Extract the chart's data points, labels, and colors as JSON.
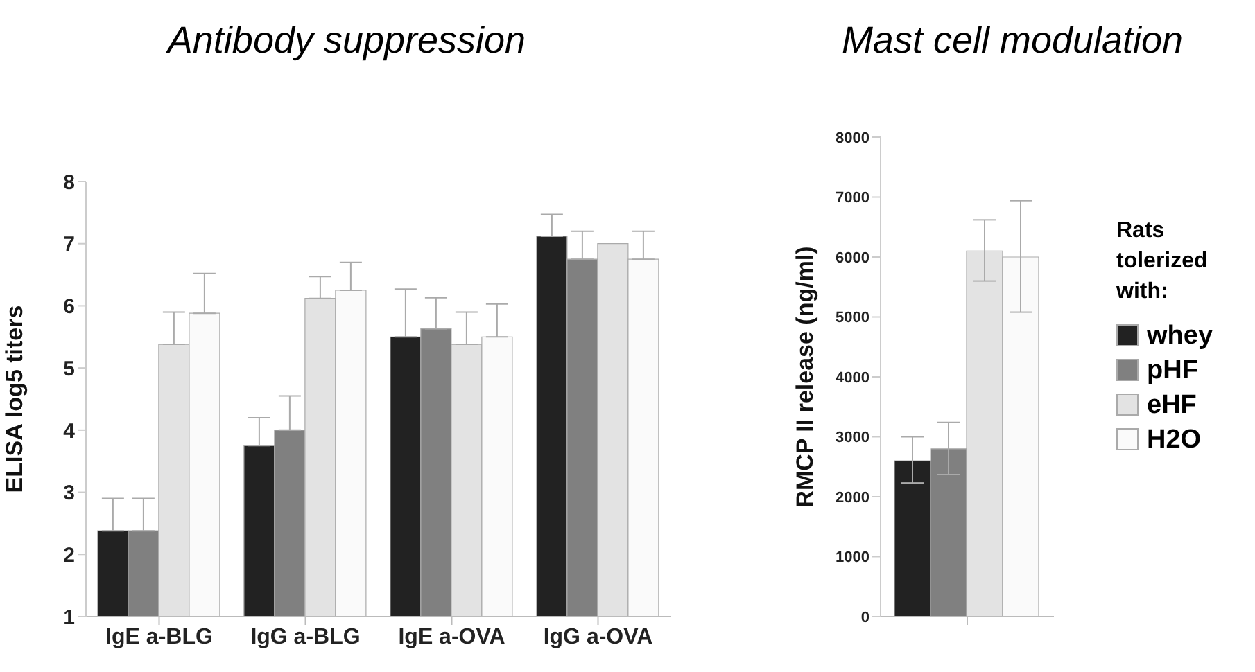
{
  "chart_data": [
    {
      "type": "bar",
      "title": "Antibody suppression",
      "ylabel": "ELISA log5 titers",
      "categories": [
        "IgE a-BLG",
        "IgG a-BLG",
        "IgE a-OVA",
        "IgG a-OVA"
      ],
      "series": [
        {
          "color": "#222222",
          "values": [
            2.38,
            3.75,
            5.5,
            7.12
          ],
          "errors": [
            [
              2.38,
              2.9
            ],
            [
              3.75,
              4.2
            ],
            [
              5.5,
              6.27
            ],
            [
              7.12,
              7.47
            ]
          ]
        },
        {
          "color": "#808080",
          "values": [
            2.38,
            4.0,
            5.63,
            6.75
          ],
          "errors": [
            [
              2.38,
              2.9
            ],
            [
              4.0,
              4.55
            ],
            [
              5.63,
              6.13
            ],
            [
              6.75,
              7.2
            ]
          ]
        },
        {
          "color": "#e3e3e3",
          "values": [
            5.38,
            6.12,
            5.38,
            7.0
          ],
          "errors": [
            [
              5.38,
              5.9
            ],
            [
              6.12,
              6.47
            ],
            [
              5.38,
              5.9
            ],
            null
          ]
        },
        {
          "color": "#fafafa",
          "values": [
            5.88,
            6.25,
            5.5,
            6.75
          ],
          "errors": [
            [
              5.88,
              6.52
            ],
            [
              6.25,
              6.7
            ],
            [
              5.5,
              6.03
            ],
            [
              6.75,
              7.2
            ]
          ]
        }
      ],
      "ylim": [
        1,
        8
      ],
      "yticks": [
        1,
        2,
        3,
        4,
        5,
        6,
        7,
        8
      ],
      "grid": false,
      "legend": false
    },
    {
      "type": "bar",
      "title": "Mast cell modulation",
      "ylabel": "RMCP II release (ng/ml)",
      "categories": [
        null
      ],
      "legend_title": "Rats tolerized with:",
      "series": [
        {
          "name": "whey",
          "color": "#222222",
          "values": [
            2600
          ],
          "errors": [
            [
              2230,
              3000
            ]
          ]
        },
        {
          "name": "pHF",
          "color": "#808080",
          "values": [
            2800
          ],
          "errors": [
            [
              2370,
              3240
            ]
          ]
        },
        {
          "name": "eHF",
          "color": "#e3e3e3",
          "values": [
            6100
          ],
          "errors": [
            [
              5600,
              6620
            ]
          ]
        },
        {
          "name": "H2O",
          "color": "#fafafa",
          "values": [
            6000
          ],
          "errors": [
            [
              5080,
              6940
            ]
          ]
        }
      ],
      "ylim": [
        0,
        8000
      ],
      "yticks": [
        0,
        1000,
        2000,
        3000,
        4000,
        5000,
        6000,
        7000,
        8000
      ],
      "grid": false,
      "legend": "right"
    }
  ]
}
